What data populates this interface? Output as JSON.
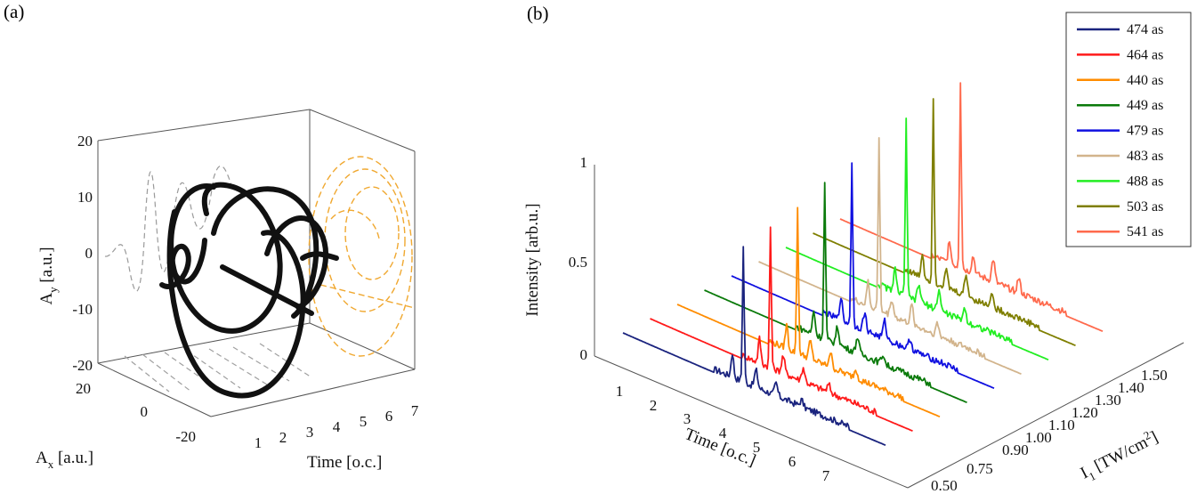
{
  "panels": {
    "a_label": "(a)",
    "b_label": "(b)"
  },
  "chart_data": [
    {
      "type": "line",
      "panel": "(a)",
      "projection": "3d",
      "xlabel": "Time [o.c.]",
      "ylabel": "A_x [a.u.]",
      "zlabel": "A_y [a.u.]",
      "time_ticks": [
        "1",
        "2",
        "3",
        "4",
        "5",
        "6",
        "7"
      ],
      "ax_ticks": [
        "20",
        "0",
        "-20"
      ],
      "ay_ticks": [
        "20",
        "10",
        "0",
        "-10",
        "-20"
      ],
      "xlim": [
        0,
        7.5
      ],
      "ylim": [
        -25,
        25
      ],
      "zlim": [
        -20,
        20
      ],
      "series": [
        {
          "role": "3d-trajectory",
          "color": "#111111",
          "style": "solid-thick"
        },
        {
          "role": "projection-Ay-vs-time",
          "color": "#9a9a9a",
          "style": "dashed"
        },
        {
          "role": "projection-Ax-vs-time",
          "color": "#9a9a9a",
          "style": "dashed"
        },
        {
          "role": "projection-Ay-vs-Ax",
          "color": "#f0a830",
          "style": "dashed"
        }
      ],
      "grid": false
    },
    {
      "type": "line",
      "panel": "(b)",
      "projection": "3d-waterfall",
      "xlabel": "Time [o.c.]",
      "ylabel": "I_1 [TW/cm^2]",
      "zlabel": "Intensity [arb.u.]",
      "time_ticks": [
        "1",
        "2",
        "3",
        "4",
        "5",
        "6",
        "7"
      ],
      "intensity_ticks": [
        "0.50",
        "0.75",
        "0.90",
        "1.00",
        "1.10",
        "1.20",
        "1.30",
        "1.40",
        "1.50"
      ],
      "z_ticks": [
        "0",
        "0.5",
        "1"
      ],
      "zlim": [
        0,
        1
      ],
      "legend_position": "top-right",
      "series": [
        {
          "name": "474 as",
          "I1": 0.5,
          "color": "#1a237e",
          "peak_time": 3.6,
          "peak": 0.72
        },
        {
          "name": "464 as",
          "I1": 0.75,
          "color": "#ff1a1a",
          "peak_time": 3.6,
          "peak": 0.75
        },
        {
          "name": "440 as",
          "I1": 0.9,
          "color": "#ff8c00",
          "peak_time": 3.6,
          "peak": 0.78
        },
        {
          "name": "449 as",
          "I1": 1.0,
          "color": "#0a7a0a",
          "peak_time": 3.6,
          "peak": 0.84
        },
        {
          "name": "479 as",
          "I1": 1.1,
          "color": "#1010e0",
          "peak_time": 3.6,
          "peak": 0.87
        },
        {
          "name": "483 as",
          "I1": 1.2,
          "color": "#d2b48c",
          "peak_time": 3.6,
          "peak": 0.93
        },
        {
          "name": "488 as",
          "I1": 1.3,
          "color": "#22ee22",
          "peak_time": 3.6,
          "peak": 0.96
        },
        {
          "name": "503 as",
          "I1": 1.4,
          "color": "#7f7f00",
          "peak_time": 3.6,
          "peak": 0.99
        },
        {
          "name": "541 as",
          "I1": 1.5,
          "color": "#ff6a4d",
          "peak_time": 3.6,
          "peak": 1.0
        }
      ]
    }
  ]
}
